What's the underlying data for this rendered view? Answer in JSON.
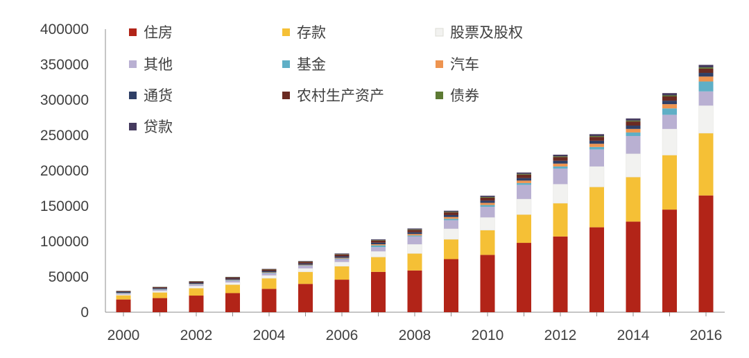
{
  "chart_data": {
    "type": "bar",
    "stacked": true,
    "categories": [
      "2000",
      "2001",
      "2002",
      "2003",
      "2004",
      "2005",
      "2006",
      "2007",
      "2008",
      "2009",
      "2010",
      "2011",
      "2012",
      "2013",
      "2014",
      "2015",
      "2016"
    ],
    "x_tick_labels": [
      "2000",
      "2002",
      "2004",
      "2006",
      "2008",
      "2010",
      "2012",
      "2014",
      "2016"
    ],
    "y_ticks": [
      0,
      50000,
      100000,
      150000,
      200000,
      250000,
      300000,
      350000,
      400000
    ],
    "ylim": [
      0,
      400000
    ],
    "grid": false,
    "legend_position": "top",
    "series": [
      {
        "name": "住房",
        "color": "#B22418",
        "values": [
          18000,
          20000,
          23500,
          27000,
          33000,
          40000,
          46000,
          57000,
          59000,
          75000,
          81000,
          98000,
          107000,
          120000,
          128000,
          145000,
          165000
        ]
      },
      {
        "name": "存款",
        "color": "#F5C036",
        "values": [
          6000,
          8000,
          10500,
          12000,
          15000,
          17000,
          19000,
          21000,
          24000,
          28000,
          35000,
          40000,
          47000,
          57000,
          63000,
          77000,
          88000
        ]
      },
      {
        "name": "股票及股权",
        "color": "#F2F2F0",
        "values": [
          1000,
          2000,
          3000,
          3000,
          4000,
          5000,
          6000,
          8000,
          13000,
          15000,
          18000,
          22000,
          27000,
          29000,
          33000,
          37000,
          39000
        ]
      },
      {
        "name": "其他",
        "color": "#B9B0D2",
        "values": [
          1500,
          1800,
          2000,
          2500,
          3000,
          3500,
          4000,
          6000,
          11000,
          12000,
          15000,
          20000,
          22000,
          24000,
          25000,
          20000,
          20000
        ]
      },
      {
        "name": "基金",
        "color": "#5FAFC6",
        "values": [
          500,
          500,
          600,
          700,
          800,
          800,
          900,
          2500,
          1500,
          2000,
          2500,
          2500,
          3000,
          3500,
          5000,
          9000,
          14000
        ]
      },
      {
        "name": "汽车",
        "color": "#EE9450",
        "values": [
          300,
          400,
          500,
          600,
          700,
          800,
          1000,
          1500,
          2000,
          2500,
          3000,
          3500,
          4000,
          4500,
          5000,
          6000,
          7000
        ]
      },
      {
        "name": "通货",
        "color": "#2F3F66",
        "values": [
          1500,
          1500,
          1600,
          1700,
          1800,
          1900,
          2100,
          2300,
          2500,
          2800,
          3200,
          3600,
          4000,
          4300,
          4700,
          4900,
          5200
        ]
      },
      {
        "name": "农村生产资产",
        "color": "#6A2A22",
        "values": [
          1000,
          1200,
          1500,
          1700,
          2000,
          2300,
          2700,
          3000,
          3300,
          3800,
          4200,
          4800,
          5200,
          5500,
          5800,
          6000,
          6000
        ]
      },
      {
        "name": "债券",
        "color": "#5D7A33",
        "values": [
          300,
          300,
          400,
          400,
          400,
          500,
          500,
          600,
          700,
          800,
          900,
          1000,
          1100,
          1200,
          1300,
          1500,
          1800
        ]
      },
      {
        "name": "贷款",
        "color": "#453A5E",
        "values": [
          200,
          200,
          300,
          400,
          500,
          600,
          800,
          1000,
          1300,
          1500,
          1800,
          2000,
          2300,
          2600,
          3000,
          3200,
          3500
        ]
      }
    ]
  }
}
